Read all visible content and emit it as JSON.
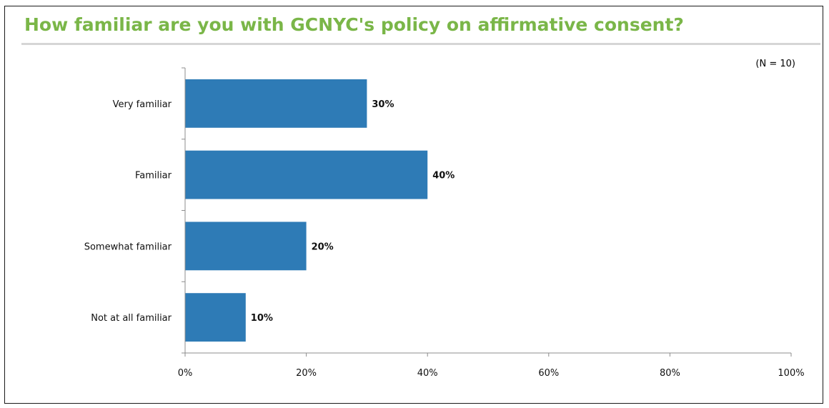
{
  "chart_data": {
    "type": "bar",
    "orientation": "horizontal",
    "title": "How familiar are you with GCNYC's policy on affirmative consent?",
    "note": "(N = 10)",
    "categories": [
      "Very familiar",
      "Familiar",
      "Somewhat familiar",
      "Not at all familiar"
    ],
    "values": [
      30,
      40,
      20,
      10
    ],
    "value_labels": [
      "30%",
      "40%",
      "20%",
      "10%"
    ],
    "xlim": [
      0,
      100
    ],
    "xticks": [
      0,
      20,
      40,
      60,
      80,
      100
    ],
    "xtick_labels": [
      "0%",
      "20%",
      "40%",
      "60%",
      "80%",
      "100%"
    ],
    "grid": false,
    "bar_color": "#2e7bb6",
    "title_color": "#7ab648"
  }
}
